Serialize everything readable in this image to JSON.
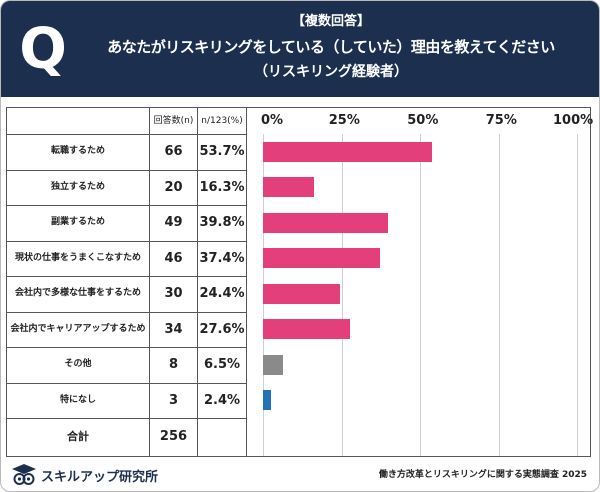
{
  "header": {
    "icon_letter": "Q",
    "tag": "【複数回答】",
    "title": "あなたがリスキリングをしている（していた）理由を教えてください",
    "subtitle": "（リスキリング経験者）"
  },
  "table": {
    "col_count": "回答数(n)",
    "col_pct": "n/123(%)",
    "total_label": "合計",
    "total_value": "256"
  },
  "chart_data": {
    "type": "bar",
    "orientation": "horizontal",
    "title": "あなたがリスキリングをしている（していた）理由を教えてください",
    "categories": [
      "転職するため",
      "独立するため",
      "副業するため",
      "現状の仕事をうまくこなすため",
      "会社内で多様な仕事をするため",
      "会社内でキャリアアップするため",
      "その他",
      "特になし"
    ],
    "counts": [
      "66",
      "20",
      "49",
      "46",
      "30",
      "34",
      "8",
      "3"
    ],
    "percent_labels": [
      "53.7%",
      "16.3%",
      "39.8%",
      "37.4%",
      "24.4%",
      "27.6%",
      "6.5%",
      "2.4%"
    ],
    "values": [
      53.7,
      16.3,
      39.8,
      37.4,
      24.4,
      27.6,
      6.5,
      2.4
    ],
    "colors": [
      "#e33f7b",
      "#e33f7b",
      "#e33f7b",
      "#e33f7b",
      "#e33f7b",
      "#e33f7b",
      "#8a8a8a",
      "#1f73b8"
    ],
    "xlim": [
      0,
      100
    ],
    "xticks": [
      "0%",
      "25%",
      "50%",
      "75%",
      "100%"
    ],
    "xtick_values": [
      0,
      25,
      50,
      75,
      100
    ],
    "grid": true
  },
  "footer": {
    "logo_text": "スキルアップ研究所",
    "note": "働き方改革とリスキリングに関する実態調査 2025"
  }
}
